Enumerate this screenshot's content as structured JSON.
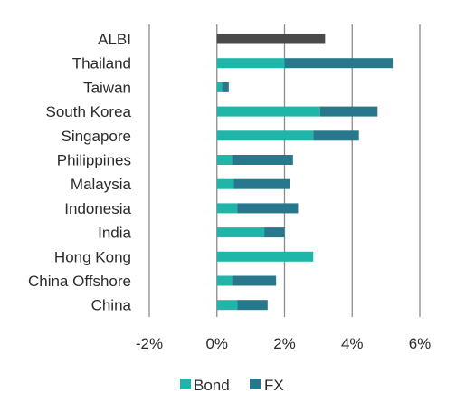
{
  "chart_data": {
    "type": "bar",
    "orientation": "horizontal",
    "stacked": true,
    "categories": [
      "ALBI",
      "Thailand",
      "Taiwan",
      "South Korea",
      "Singapore",
      "Philippines",
      "Malaysia",
      "Indonesia",
      "India",
      "Hong Kong",
      "China Offshore",
      "China"
    ],
    "series": [
      {
        "name": "Bond",
        "color": "#1fb5a8",
        "values": [
          null,
          2.0,
          0.15,
          3.05,
          2.85,
          0.45,
          0.5,
          0.6,
          1.4,
          2.85,
          0.45,
          0.6
        ]
      },
      {
        "name": "FX",
        "color": "#27788c",
        "values": [
          null,
          3.2,
          0.2,
          1.7,
          1.35,
          1.8,
          1.65,
          1.8,
          0.6,
          0.0,
          1.3,
          0.9
        ]
      },
      {
        "name": "",
        "color": "#4a4a4a",
        "values": [
          3.2,
          null,
          null,
          null,
          null,
          null,
          null,
          null,
          null,
          null,
          null,
          null
        ]
      }
    ],
    "xlim": [
      -2,
      6
    ],
    "xticks": [
      -2,
      0,
      2,
      4,
      6
    ],
    "xtick_labels": [
      "-2%",
      "0%",
      "2%",
      "4%",
      "6%"
    ],
    "grid": "vertical",
    "legend": "bottom"
  },
  "legend": {
    "items": [
      {
        "label": "Bond",
        "color": "#1fb5a8"
      },
      {
        "label": "FX",
        "color": "#27788c"
      }
    ]
  }
}
